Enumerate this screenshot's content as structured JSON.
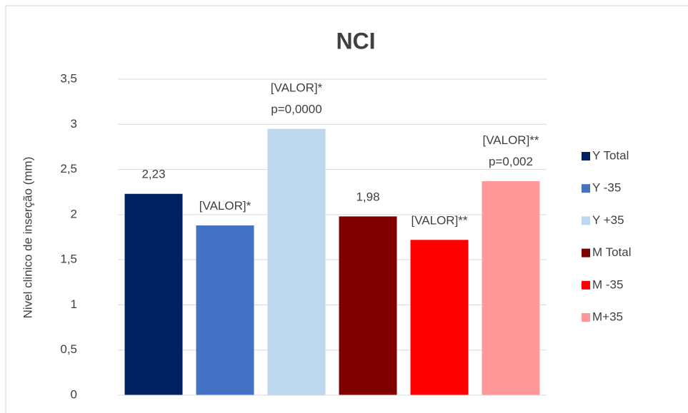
{
  "chart_data": {
    "type": "bar",
    "title": "NCI",
    "y_label": "Nivel clinico de inserção (mm)",
    "categories": [
      null
    ],
    "series": [
      {
        "name": "Y Total",
        "color": "#002060",
        "values": [
          2.23
        ],
        "value_labels": [
          [
            "2,23"
          ]
        ]
      },
      {
        "name": "Y -35",
        "color": "#4472c4",
        "values": [
          1.88
        ],
        "value_labels": [
          [
            "[VALOR]*"
          ]
        ]
      },
      {
        "name": "Y +35",
        "color": "#bdd7ee",
        "values": [
          2.95
        ],
        "value_labels": [
          [
            "[VALOR]*",
            "p=0,0000"
          ]
        ]
      },
      {
        "name": "M Total",
        "color": "#7f0000",
        "values": [
          1.98
        ],
        "value_labels": [
          [
            "1,98"
          ]
        ]
      },
      {
        "name": "M -35",
        "color": "#ff0000",
        "values": [
          1.72
        ],
        "value_labels": [
          [
            "[VALOR]**"
          ]
        ]
      },
      {
        "name": "M+35",
        "color": "#ff9999",
        "values": [
          2.37
        ],
        "value_labels": [
          [
            "[VALOR]**",
            "p=0,002"
          ]
        ]
      }
    ],
    "ylim": [
      0,
      3.5
    ],
    "yticks": [
      0,
      {
        "value": 0.5,
        "label": "0,5"
      },
      1,
      {
        "value": 1.5,
        "label": "1,5"
      },
      2,
      {
        "value": 2.5,
        "label": "2,5"
      },
      3,
      {
        "value": 3.5,
        "label": "3,5"
      }
    ],
    "grid": true,
    "legend": "right"
  }
}
